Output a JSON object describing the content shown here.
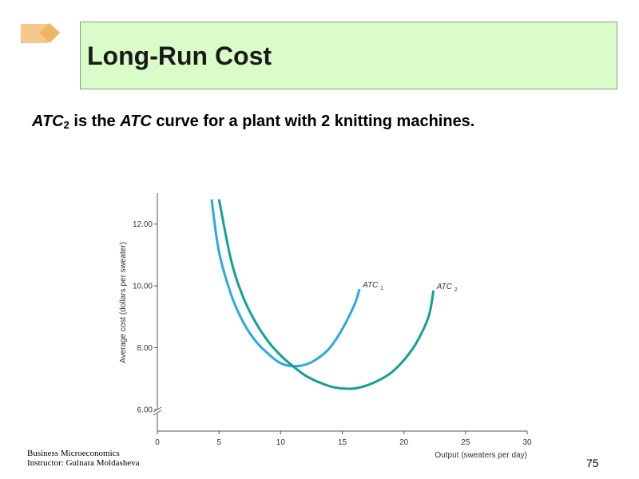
{
  "slide": {
    "title": "Long-Run Cost",
    "subtitle": {
      "atc_italic": "ATC",
      "sub": "2",
      "text1": " is the ",
      "atc_italic2": "ATC",
      "text2": " curve for a plant  with 2 knitting  machines."
    },
    "footer_line1": "Business Microeconomics",
    "footer_line2": "Instructor: Gulnara Moldasheva",
    "page_number": "75",
    "colors": {
      "title_background": "#d9fcc8",
      "logo": "#f5c98a",
      "atc1": "#29abe2",
      "atc2": "#13a095"
    }
  },
  "chart_data": {
    "type": "line",
    "xlabel": "Output (sweaters per day)",
    "ylabel": "Average cost (dollars per sweater)",
    "x_ticks": [
      "0",
      "5",
      "10",
      "15",
      "20",
      "25",
      "30"
    ],
    "y_ticks": [
      "6.00",
      "8.00",
      "10.00",
      "12.00"
    ],
    "xlim": [
      0,
      30
    ],
    "ylim": [
      5.3,
      13
    ],
    "axis_break": true,
    "grid": false,
    "series": [
      {
        "name": "ATC",
        "label_sub": "1",
        "color": "#29abe2",
        "x": [
          4.4,
          5,
          6,
          7,
          8,
          9,
          10,
          11,
          12,
          13,
          14,
          15,
          16,
          16.4
        ],
        "y": [
          12.8,
          11.1,
          9.7,
          8.8,
          8.2,
          7.8,
          7.5,
          7.4,
          7.45,
          7.65,
          8.0,
          8.6,
          9.4,
          9.9
        ]
      },
      {
        "name": "ATC",
        "label_sub": "2",
        "color": "#13a095",
        "x": [
          5.0,
          6,
          7,
          8,
          9,
          10,
          11,
          12,
          13,
          14,
          15,
          16,
          17,
          18,
          19,
          20,
          21,
          22,
          22.4
        ],
        "y": [
          12.8,
          10.8,
          9.6,
          8.8,
          8.2,
          7.75,
          7.4,
          7.1,
          6.9,
          6.75,
          6.68,
          6.68,
          6.78,
          6.95,
          7.2,
          7.6,
          8.15,
          9.0,
          9.85
        ]
      }
    ]
  }
}
